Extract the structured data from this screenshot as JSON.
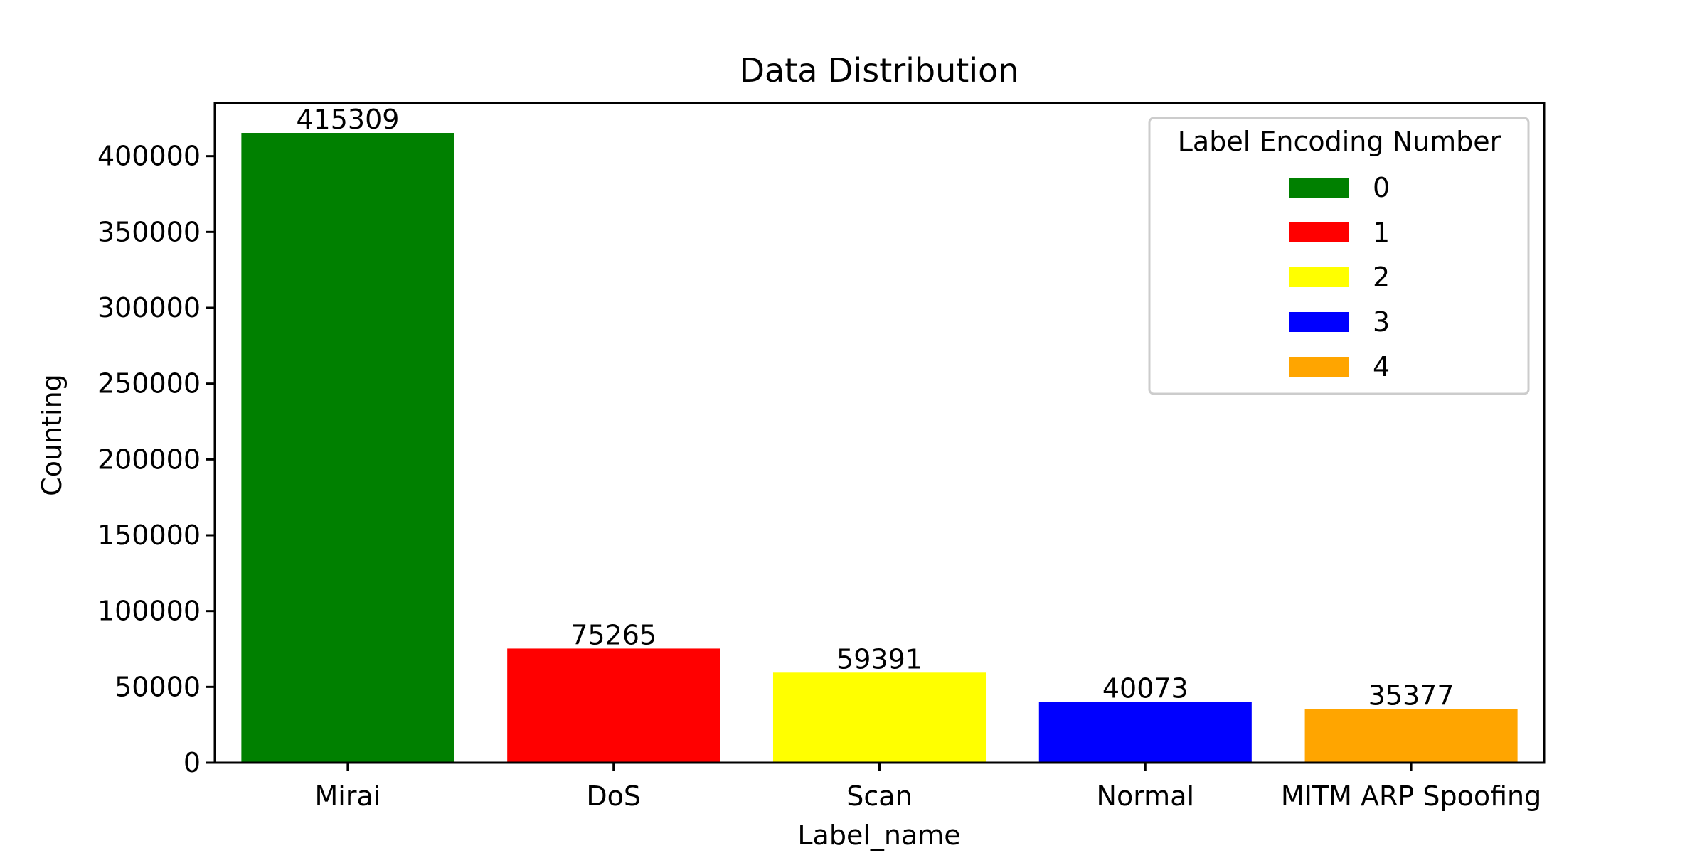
{
  "chart_data": {
    "type": "bar",
    "title": "Data Distribution",
    "xlabel": "Label_name",
    "ylabel": "Counting",
    "categories": [
      "Mirai",
      "DoS",
      "Scan",
      "Normal",
      "MITM ARP Spoofing"
    ],
    "values": [
      415309,
      75265,
      59391,
      40073,
      35377
    ],
    "value_labels": [
      "415309",
      "75265",
      "59391",
      "40073",
      "35377"
    ],
    "colors": [
      "#008000",
      "#ff0000",
      "#ffff00",
      "#0000ff",
      "#ffa500"
    ],
    "ylim": [
      0,
      435000
    ],
    "yticks": [
      0,
      50000,
      100000,
      150000,
      200000,
      250000,
      300000,
      350000,
      400000
    ],
    "ytick_labels": [
      "0",
      "50000",
      "100000",
      "150000",
      "200000",
      "250000",
      "300000",
      "350000",
      "400000"
    ],
    "grid": false,
    "legend": {
      "title": "Label Encoding Number",
      "placement": "top-right",
      "entries": [
        "0",
        "1",
        "2",
        "3",
        "4"
      ]
    }
  }
}
